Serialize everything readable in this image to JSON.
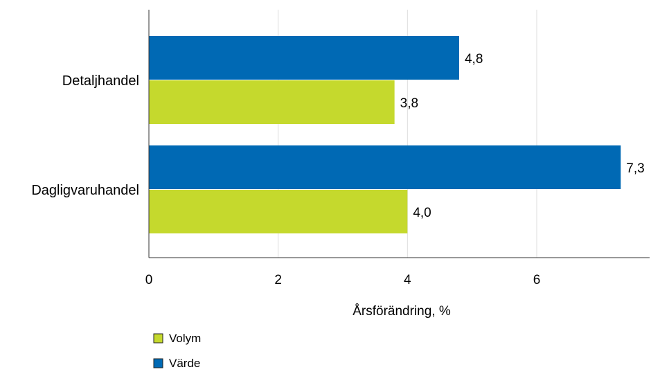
{
  "chart_data": {
    "type": "bar",
    "orientation": "horizontal",
    "categories": [
      "Detaljhandel",
      "Dagligvaruhandel"
    ],
    "series": [
      {
        "name": "Värde",
        "values": [
          4.8,
          7.3
        ],
        "labels": [
          "4,8",
          "7,3"
        ],
        "color": "#0069b4"
      },
      {
        "name": "Volym",
        "values": [
          3.8,
          4.0
        ],
        "labels": [
          "3,8",
          "4,0"
        ],
        "color": "#c5d92d"
      }
    ],
    "xlabel": "Årsförändring, %",
    "xlim": [
      0,
      7.7
    ],
    "xticks": [
      0,
      2,
      4,
      6
    ],
    "xtick_labels": [
      "0",
      "2",
      "4",
      "6"
    ],
    "grid": true,
    "legend": {
      "position": "bottom-left",
      "entries": [
        {
          "label": "Volym",
          "color": "#c5d92d"
        },
        {
          "label": "Värde",
          "color": "#0069b4"
        }
      ]
    }
  }
}
